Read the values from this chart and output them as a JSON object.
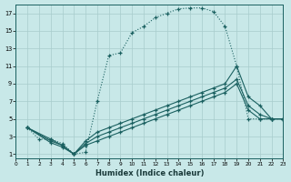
{
  "xlabel": "Humidex (Indice chaleur)",
  "bg_color": "#c8e8e8",
  "line_color": "#1a6060",
  "grid_color": "#a8cccc",
  "xlim": [
    0,
    23
  ],
  "ylim": [
    0.5,
    18
  ],
  "xticks": [
    0,
    1,
    2,
    3,
    4,
    5,
    6,
    7,
    8,
    9,
    10,
    11,
    12,
    13,
    14,
    15,
    16,
    17,
    18,
    19,
    20,
    21,
    22,
    23
  ],
  "yticks": [
    1,
    3,
    5,
    7,
    9,
    11,
    13,
    15,
    17
  ],
  "curve1_x": [
    1,
    2,
    3,
    4,
    5,
    6,
    7,
    8,
    9,
    10,
    11,
    12,
    13,
    14,
    15,
    16,
    17,
    18,
    19,
    20,
    21,
    22,
    23
  ],
  "curve1_y": [
    4,
    2.7,
    2.7,
    2.2,
    1,
    1.2,
    7,
    12.2,
    12.5,
    14.8,
    15.5,
    16.5,
    17,
    17.5,
    17.6,
    17.6,
    17.2,
    15.5,
    11,
    5,
    5,
    5,
    5
  ],
  "line2_x": [
    1,
    3,
    4,
    5,
    6,
    7,
    8,
    9,
    10,
    11,
    12,
    13,
    14,
    15,
    16,
    17,
    18,
    19,
    20,
    21,
    22,
    23
  ],
  "line2_y": [
    4,
    2.7,
    2,
    1,
    2.5,
    3.5,
    4,
    4.5,
    5,
    5.5,
    6,
    6.5,
    7,
    7.5,
    8,
    8.5,
    9,
    11,
    7.5,
    6.5,
    5,
    5
  ],
  "line3_x": [
    1,
    3,
    4,
    5,
    6,
    7,
    8,
    9,
    10,
    11,
    12,
    13,
    14,
    15,
    16,
    17,
    18,
    19,
    20,
    21,
    22,
    23
  ],
  "line3_y": [
    4,
    2.5,
    2,
    1,
    2.2,
    3,
    3.5,
    4,
    4.5,
    5,
    5.5,
    6,
    6.5,
    7,
    7.5,
    8,
    8.5,
    9.5,
    6.5,
    5.5,
    5,
    5
  ],
  "line4_x": [
    1,
    3,
    4,
    5,
    6,
    7,
    8,
    9,
    10,
    11,
    12,
    13,
    14,
    15,
    16,
    17,
    18,
    19,
    20,
    21,
    22,
    23
  ],
  "line4_y": [
    4,
    2.3,
    1.8,
    1,
    2,
    2.5,
    3,
    3.5,
    4,
    4.5,
    5,
    5.5,
    6,
    6.5,
    7,
    7.5,
    8,
    9,
    6,
    5,
    5,
    5
  ]
}
